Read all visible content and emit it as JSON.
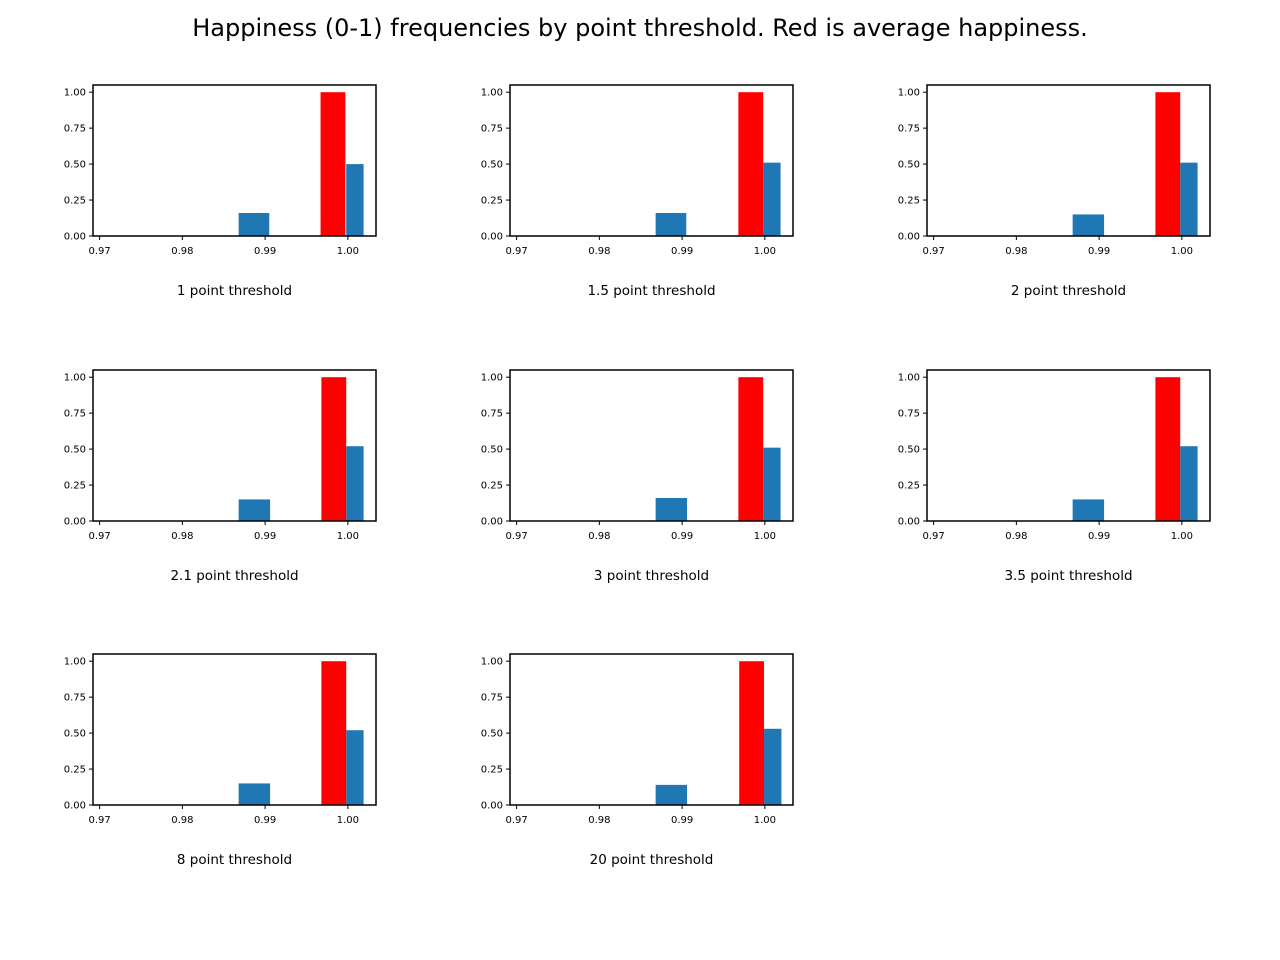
{
  "title": "Happiness (0-1) frequencies by point threshold. Red is average happiness.",
  "colors": {
    "average": "#ff0000",
    "frequency": "#1f77b4",
    "axes": "#000000"
  },
  "chart_data": [
    {
      "type": "bar",
      "xlabel": "1 point threshold",
      "xlim": [
        0.9692,
        1.0034
      ],
      "ylim": [
        0,
        1.05
      ],
      "xticks": [
        "0.97",
        "0.98",
        "0.99",
        "1.00"
      ],
      "yticks": [
        "0.00",
        "0.25",
        "0.50",
        "0.75",
        "1.00"
      ],
      "average_happiness": 0.9982,
      "frequency_bars": [
        {
          "x_start": 0.9868,
          "x_end": 0.9905,
          "value": 0.16
        },
        {
          "x_start": 0.9998,
          "x_end": 1.0019,
          "value": 0.5
        }
      ]
    },
    {
      "type": "bar",
      "xlabel": "1.5 point threshold",
      "xlim": [
        0.9692,
        1.0034
      ],
      "ylim": [
        0,
        1.05
      ],
      "xticks": [
        "0.97",
        "0.98",
        "0.99",
        "1.00"
      ],
      "yticks": [
        "0.00",
        "0.25",
        "0.50",
        "0.75",
        "1.00"
      ],
      "average_happiness": 0.9983,
      "frequency_bars": [
        {
          "x_start": 0.9868,
          "x_end": 0.9905,
          "value": 0.16
        },
        {
          "x_start": 0.9998,
          "x_end": 1.0019,
          "value": 0.51
        }
      ]
    },
    {
      "type": "bar",
      "xlabel": "2 point threshold",
      "xlim": [
        0.9692,
        1.0034
      ],
      "ylim": [
        0,
        1.05
      ],
      "xticks": [
        "0.97",
        "0.98",
        "0.99",
        "1.00"
      ],
      "yticks": [
        "0.00",
        "0.25",
        "0.50",
        "0.75",
        "1.00"
      ],
      "average_happiness": 0.9983,
      "frequency_bars": [
        {
          "x_start": 0.9868,
          "x_end": 0.9906,
          "value": 0.15
        },
        {
          "x_start": 0.9998,
          "x_end": 1.0019,
          "value": 0.51
        }
      ]
    },
    {
      "type": "bar",
      "xlabel": "2.1 point threshold",
      "xlim": [
        0.9692,
        1.0034
      ],
      "ylim": [
        0,
        1.05
      ],
      "xticks": [
        "0.97",
        "0.98",
        "0.99",
        "1.00"
      ],
      "yticks": [
        "0.00",
        "0.25",
        "0.50",
        "0.75",
        "1.00"
      ],
      "average_happiness": 0.9983,
      "frequency_bars": [
        {
          "x_start": 0.9868,
          "x_end": 0.9906,
          "value": 0.15
        },
        {
          "x_start": 0.9998,
          "x_end": 1.0019,
          "value": 0.52
        }
      ]
    },
    {
      "type": "bar",
      "xlabel": "3 point threshold",
      "xlim": [
        0.9692,
        1.0034
      ],
      "ylim": [
        0,
        1.05
      ],
      "xticks": [
        "0.97",
        "0.98",
        "0.99",
        "1.00"
      ],
      "yticks": [
        "0.00",
        "0.25",
        "0.50",
        "0.75",
        "1.00"
      ],
      "average_happiness": 0.9983,
      "frequency_bars": [
        {
          "x_start": 0.9868,
          "x_end": 0.9906,
          "value": 0.16
        },
        {
          "x_start": 0.9998,
          "x_end": 1.0019,
          "value": 0.51
        }
      ]
    },
    {
      "type": "bar",
      "xlabel": "3.5 point threshold",
      "xlim": [
        0.9692,
        1.0034
      ],
      "ylim": [
        0,
        1.05
      ],
      "xticks": [
        "0.97",
        "0.98",
        "0.99",
        "1.00"
      ],
      "yticks": [
        "0.00",
        "0.25",
        "0.50",
        "0.75",
        "1.00"
      ],
      "average_happiness": 0.9983,
      "frequency_bars": [
        {
          "x_start": 0.9868,
          "x_end": 0.9906,
          "value": 0.15
        },
        {
          "x_start": 0.9998,
          "x_end": 1.0019,
          "value": 0.52
        }
      ]
    },
    {
      "type": "bar",
      "xlabel": "8 point threshold",
      "xlim": [
        0.9692,
        1.0034
      ],
      "ylim": [
        0,
        1.05
      ],
      "xticks": [
        "0.97",
        "0.98",
        "0.99",
        "1.00"
      ],
      "yticks": [
        "0.00",
        "0.25",
        "0.50",
        "0.75",
        "1.00"
      ],
      "average_happiness": 0.9983,
      "frequency_bars": [
        {
          "x_start": 0.9868,
          "x_end": 0.9906,
          "value": 0.15
        },
        {
          "x_start": 0.9998,
          "x_end": 1.0019,
          "value": 0.52
        }
      ]
    },
    {
      "type": "bar",
      "xlabel": "20 point threshold",
      "xlim": [
        0.9692,
        1.0034
      ],
      "ylim": [
        0,
        1.05
      ],
      "xticks": [
        "0.97",
        "0.98",
        "0.99",
        "1.00"
      ],
      "yticks": [
        "0.00",
        "0.25",
        "0.50",
        "0.75",
        "1.00"
      ],
      "average_happiness": 0.9984,
      "frequency_bars": [
        {
          "x_start": 0.9868,
          "x_end": 0.9906,
          "value": 0.14
        },
        {
          "x_start": 0.9999,
          "x_end": 1.002,
          "value": 0.53
        }
      ]
    }
  ]
}
